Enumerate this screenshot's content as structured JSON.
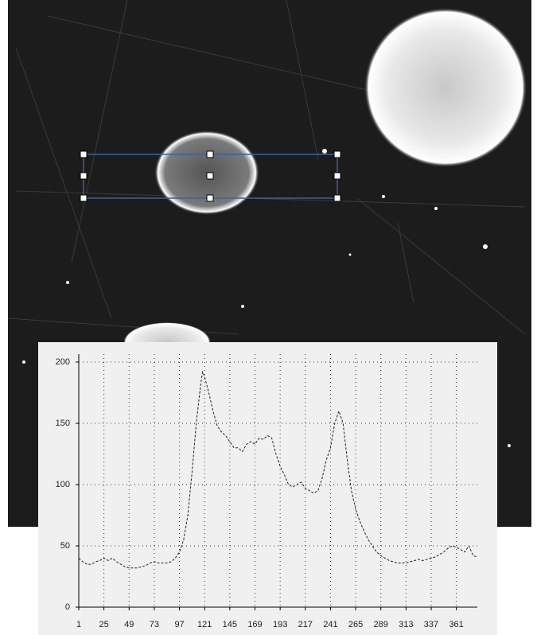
{
  "chart_data": {
    "type": "line",
    "x": [
      1,
      5,
      9,
      13,
      17,
      21,
      25,
      29,
      33,
      37,
      41,
      45,
      49,
      53,
      57,
      61,
      65,
      69,
      73,
      77,
      81,
      85,
      89,
      93,
      97,
      101,
      105,
      109,
      113,
      117,
      119,
      121,
      125,
      129,
      133,
      137,
      141,
      145,
      149,
      153,
      157,
      161,
      165,
      169,
      173,
      177,
      181,
      185,
      189,
      193,
      197,
      201,
      205,
      209,
      213,
      217,
      221,
      225,
      229,
      233,
      237,
      241,
      245,
      249,
      253,
      257,
      261,
      265,
      269,
      273,
      277,
      281,
      285,
      289,
      293,
      297,
      301,
      305,
      309,
      313,
      317,
      321,
      325,
      329,
      333,
      337,
      341,
      345,
      349,
      353,
      357,
      361,
      365,
      369,
      373,
      377,
      381
    ],
    "values": [
      40,
      37,
      35,
      35,
      37,
      38,
      40,
      38,
      40,
      37,
      35,
      33,
      32,
      32,
      32,
      33,
      34,
      36,
      37,
      36,
      36,
      36,
      37,
      40,
      45,
      55,
      75,
      110,
      150,
      180,
      192,
      188,
      175,
      160,
      148,
      143,
      140,
      135,
      130,
      130,
      127,
      133,
      135,
      133,
      138,
      137,
      140,
      138,
      125,
      115,
      108,
      100,
      98,
      100,
      102,
      97,
      95,
      93,
      95,
      105,
      120,
      130,
      150,
      160,
      150,
      120,
      95,
      80,
      70,
      62,
      55,
      50,
      45,
      42,
      40,
      38,
      37,
      36,
      36,
      36,
      37,
      38,
      39,
      38,
      39,
      40,
      41,
      43,
      45,
      48,
      50,
      49,
      47,
      45,
      50,
      42,
      41
    ],
    "color": "#222222",
    "xlim": [
      1,
      381
    ],
    "ylim": [
      0,
      200
    ],
    "xticks": [
      1,
      25,
      49,
      73,
      97,
      121,
      145,
      169,
      193,
      217,
      241,
      265,
      289,
      313,
      337,
      361
    ],
    "yticks": [
      0,
      50,
      100,
      150,
      200
    ],
    "grid": true
  }
}
